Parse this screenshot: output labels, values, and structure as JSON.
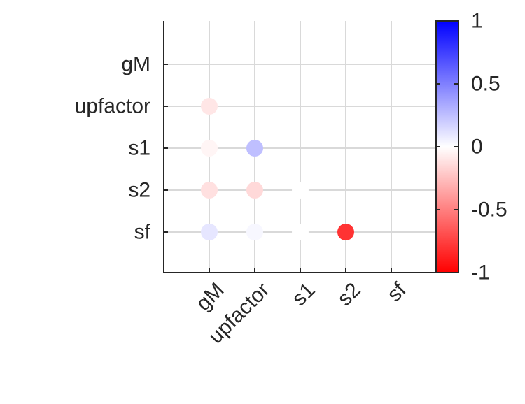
{
  "chart_data": {
    "type": "heatmap",
    "title": "",
    "xlabel": "",
    "ylabel": "",
    "variables": [
      "gM",
      "upfactor",
      "s1",
      "s2",
      "sf"
    ],
    "cells": [
      {
        "row": "upfactor",
        "col": "gM",
        "value": -0.1
      },
      {
        "row": "s1",
        "col": "gM",
        "value": -0.04
      },
      {
        "row": "s1",
        "col": "upfactor",
        "value": 0.25
      },
      {
        "row": "s2",
        "col": "gM",
        "value": -0.12
      },
      {
        "row": "s2",
        "col": "upfactor",
        "value": -0.15
      },
      {
        "row": "s2",
        "col": "s1",
        "value": 0.0
      },
      {
        "row": "sf",
        "col": "gM",
        "value": 0.1
      },
      {
        "row": "sf",
        "col": "upfactor",
        "value": 0.03
      },
      {
        "row": "sf",
        "col": "s1",
        "value": 0.0
      },
      {
        "row": "sf",
        "col": "s2",
        "value": -0.8
      }
    ],
    "colorbar": {
      "range": [
        -1,
        1
      ],
      "ticks": [
        "1",
        "0.5",
        "0",
        "-0.5",
        "-1"
      ],
      "low_color": "#ff0000",
      "mid_color": "#ffffff",
      "high_color": "#0000ff"
    },
    "grid": true
  }
}
